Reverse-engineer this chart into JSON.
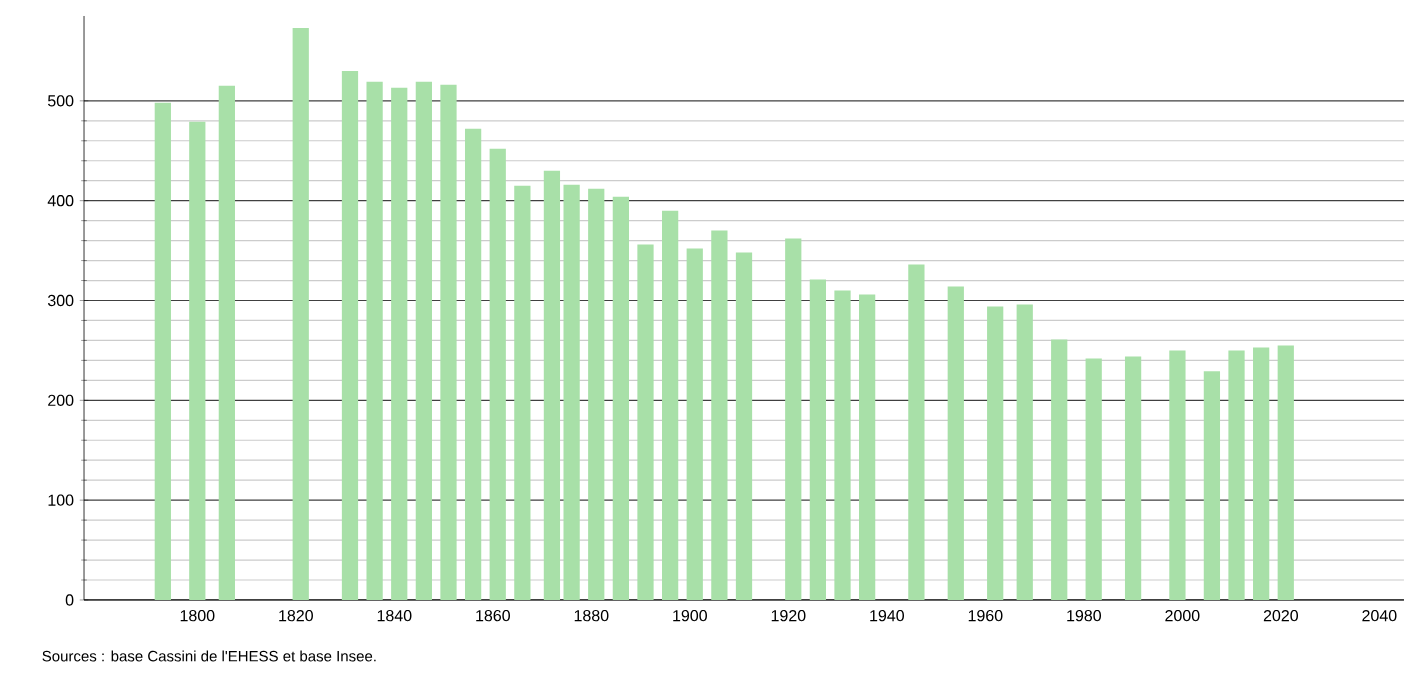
{
  "chart_data": {
    "type": "bar",
    "x": [
      1793,
      1800,
      1806,
      1821,
      1831,
      1836,
      1841,
      1846,
      1851,
      1856,
      1861,
      1866,
      1872,
      1876,
      1881,
      1886,
      1891,
      1896,
      1901,
      1906,
      1911,
      1921,
      1926,
      1931,
      1936,
      1946,
      1954,
      1962,
      1968,
      1975,
      1982,
      1990,
      1999,
      2006,
      2011,
      2016,
      2021
    ],
    "values": [
      498,
      479,
      515,
      573,
      530,
      519,
      513,
      519,
      516,
      472,
      452,
      415,
      430,
      416,
      412,
      404,
      356,
      390,
      352,
      370,
      348,
      362,
      321,
      310,
      306,
      336,
      314,
      294,
      296,
      261,
      242,
      244,
      250,
      229,
      250,
      253,
      255
    ],
    "color": "#a8e0a8",
    "xlim": [
      1777,
      2045
    ],
    "ylim": [
      0,
      585
    ],
    "xticks": [
      1800,
      1820,
      1840,
      1860,
      1880,
      1900,
      1920,
      1940,
      1960,
      1980,
      2000,
      2020,
      2040
    ],
    "yticks": [
      0,
      100,
      200,
      300,
      400,
      500
    ],
    "grid": "y",
    "annotations": [
      "Sources : base Cassini de l'EHESS et base Insee."
    ]
  }
}
